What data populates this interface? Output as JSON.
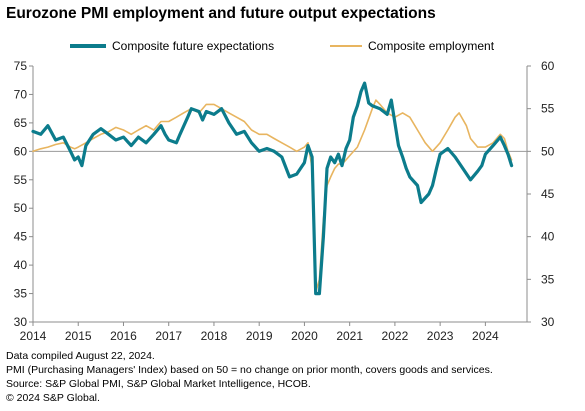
{
  "title": "Eurozone PMI employment and future output expectations",
  "legend": {
    "series1": "Composite future expectations",
    "series2": "Composite employment"
  },
  "colors": {
    "expectations": "#0c7c8c",
    "employment": "#e8b560",
    "axis": "#8c8c8c",
    "refline": "#9a9a9a"
  },
  "footnotes": [
    "Data compiled August 22, 2024.",
    "PMI (Purchasing Managers' Index) based on 50 = no change on prior month, covers goods and services.",
    "Source: S&P Global PMI,  S&P Global Market Intelligence,  HCOB.",
    "© 2024 S&P Global."
  ],
  "chart_data": {
    "type": "line",
    "title": "Eurozone PMI employment and future output expectations",
    "x_ticks": [
      "2014",
      "2015",
      "2016",
      "2017",
      "2018",
      "2019",
      "2020",
      "2021",
      "2022",
      "2023",
      "2024"
    ],
    "xlim": [
      2014.0,
      2024.92
    ],
    "y_left": {
      "min": 30,
      "max": 75,
      "step": 5,
      "ticks": [
        "30",
        "35",
        "40",
        "45",
        "50",
        "55",
        "60",
        "65",
        "70",
        "75"
      ]
    },
    "y_right": {
      "min": 30,
      "max": 60,
      "step": 5,
      "ticks": [
        "30",
        "35",
        "40",
        "45",
        "50",
        "55",
        "60"
      ]
    },
    "reference_line": {
      "axis": "right",
      "value": 50
    },
    "series": [
      {
        "name": "Composite future expectations",
        "axis": "left",
        "points": [
          [
            2014.0,
            63.5
          ],
          [
            2014.17,
            63.0
          ],
          [
            2014.33,
            64.5
          ],
          [
            2014.5,
            62.0
          ],
          [
            2014.67,
            62.5
          ],
          [
            2014.83,
            60.0
          ],
          [
            2014.92,
            58.5
          ],
          [
            2015.0,
            59.0
          ],
          [
            2015.08,
            57.5
          ],
          [
            2015.17,
            61.0
          ],
          [
            2015.33,
            63.0
          ],
          [
            2015.5,
            64.0
          ],
          [
            2015.67,
            63.0
          ],
          [
            2015.83,
            62.0
          ],
          [
            2016.0,
            62.5
          ],
          [
            2016.17,
            61.0
          ],
          [
            2016.33,
            62.5
          ],
          [
            2016.5,
            61.5
          ],
          [
            2016.67,
            63.0
          ],
          [
            2016.83,
            64.5
          ],
          [
            2016.92,
            63.0
          ],
          [
            2017.0,
            62.0
          ],
          [
            2017.17,
            61.5
          ],
          [
            2017.25,
            63.0
          ],
          [
            2017.42,
            66.0
          ],
          [
            2017.5,
            67.5
          ],
          [
            2017.67,
            67.0
          ],
          [
            2017.75,
            65.5
          ],
          [
            2017.83,
            67.0
          ],
          [
            2018.0,
            66.5
          ],
          [
            2018.17,
            67.5
          ],
          [
            2018.33,
            65.0
          ],
          [
            2018.5,
            63.0
          ],
          [
            2018.67,
            63.5
          ],
          [
            2018.83,
            61.5
          ],
          [
            2019.0,
            60.0
          ],
          [
            2019.17,
            60.5
          ],
          [
            2019.33,
            60.0
          ],
          [
            2019.5,
            59.0
          ],
          [
            2019.67,
            55.5
          ],
          [
            2019.83,
            56.0
          ],
          [
            2020.0,
            58.0
          ],
          [
            2020.08,
            61.0
          ],
          [
            2020.17,
            59.0
          ],
          [
            2020.25,
            35.0
          ],
          [
            2020.33,
            35.0
          ],
          [
            2020.42,
            45.0
          ],
          [
            2020.5,
            57.0
          ],
          [
            2020.58,
            59.0
          ],
          [
            2020.67,
            58.0
          ],
          [
            2020.75,
            59.5
          ],
          [
            2020.83,
            57.5
          ],
          [
            2020.92,
            60.5
          ],
          [
            2021.0,
            62.0
          ],
          [
            2021.08,
            66.0
          ],
          [
            2021.17,
            68.0
          ],
          [
            2021.25,
            70.5
          ],
          [
            2021.33,
            72.0
          ],
          [
            2021.42,
            68.5
          ],
          [
            2021.5,
            68.0
          ],
          [
            2021.67,
            67.5
          ],
          [
            2021.83,
            66.5
          ],
          [
            2021.92,
            69.0
          ],
          [
            2022.0,
            65.0
          ],
          [
            2022.08,
            61.0
          ],
          [
            2022.17,
            59.0
          ],
          [
            2022.25,
            57.0
          ],
          [
            2022.33,
            55.5
          ],
          [
            2022.5,
            54.0
          ],
          [
            2022.58,
            51.0
          ],
          [
            2022.75,
            52.5
          ],
          [
            2022.83,
            54.0
          ],
          [
            2022.92,
            57.0
          ],
          [
            2023.0,
            59.5
          ],
          [
            2023.17,
            60.5
          ],
          [
            2023.33,
            59.0
          ],
          [
            2023.5,
            57.0
          ],
          [
            2023.67,
            55.0
          ],
          [
            2023.83,
            56.5
          ],
          [
            2023.92,
            57.5
          ],
          [
            2024.0,
            59.5
          ],
          [
            2024.17,
            61.0
          ],
          [
            2024.33,
            62.5
          ],
          [
            2024.42,
            61.0
          ],
          [
            2024.5,
            59.5
          ],
          [
            2024.58,
            57.5
          ]
        ]
      },
      {
        "name": "Composite employment",
        "axis": "right",
        "points": [
          [
            2014.0,
            50.0
          ],
          [
            2014.17,
            50.3
          ],
          [
            2014.33,
            50.5
          ],
          [
            2014.5,
            50.8
          ],
          [
            2014.67,
            51.0
          ],
          [
            2014.83,
            50.5
          ],
          [
            2014.92,
            50.3
          ],
          [
            2015.0,
            50.5
          ],
          [
            2015.17,
            51.0
          ],
          [
            2015.33,
            51.5
          ],
          [
            2015.5,
            52.0
          ],
          [
            2015.67,
            52.3
          ],
          [
            2015.83,
            52.8
          ],
          [
            2016.0,
            52.5
          ],
          [
            2016.17,
            52.0
          ],
          [
            2016.33,
            52.5
          ],
          [
            2016.5,
            53.0
          ],
          [
            2016.67,
            52.5
          ],
          [
            2016.83,
            53.5
          ],
          [
            2017.0,
            53.5
          ],
          [
            2017.17,
            54.0
          ],
          [
            2017.33,
            54.5
          ],
          [
            2017.5,
            55.0
          ],
          [
            2017.67,
            54.5
          ],
          [
            2017.83,
            55.5
          ],
          [
            2018.0,
            55.5
          ],
          [
            2018.17,
            55.0
          ],
          [
            2018.33,
            54.5
          ],
          [
            2018.5,
            54.0
          ],
          [
            2018.67,
            53.5
          ],
          [
            2018.83,
            52.5
          ],
          [
            2019.0,
            52.0
          ],
          [
            2019.17,
            52.0
          ],
          [
            2019.33,
            51.5
          ],
          [
            2019.5,
            51.0
          ],
          [
            2019.67,
            50.5
          ],
          [
            2019.83,
            50.0
          ],
          [
            2020.0,
            50.5
          ],
          [
            2020.08,
            51.0
          ],
          [
            2020.17,
            48.0
          ],
          [
            2020.25,
            33.5
          ],
          [
            2020.33,
            35.0
          ],
          [
            2020.42,
            42.0
          ],
          [
            2020.5,
            46.0
          ],
          [
            2020.58,
            47.0
          ],
          [
            2020.67,
            48.0
          ],
          [
            2020.75,
            48.5
          ],
          [
            2020.83,
            48.5
          ],
          [
            2020.92,
            49.0
          ],
          [
            2021.0,
            49.5
          ],
          [
            2021.17,
            50.5
          ],
          [
            2021.33,
            52.5
          ],
          [
            2021.5,
            55.0
          ],
          [
            2021.58,
            56.0
          ],
          [
            2021.67,
            55.5
          ],
          [
            2021.83,
            54.5
          ],
          [
            2022.0,
            54.0
          ],
          [
            2022.17,
            54.5
          ],
          [
            2022.33,
            54.0
          ],
          [
            2022.5,
            52.5
          ],
          [
            2022.67,
            51.0
          ],
          [
            2022.83,
            50.0
          ],
          [
            2023.0,
            51.0
          ],
          [
            2023.17,
            52.5
          ],
          [
            2023.33,
            54.0
          ],
          [
            2023.42,
            54.5
          ],
          [
            2023.58,
            53.0
          ],
          [
            2023.67,
            51.5
          ],
          [
            2023.83,
            50.5
          ],
          [
            2024.0,
            50.5
          ],
          [
            2024.17,
            51.0
          ],
          [
            2024.33,
            52.0
          ],
          [
            2024.42,
            51.5
          ],
          [
            2024.5,
            50.0
          ],
          [
            2024.58,
            49.0
          ]
        ]
      }
    ]
  }
}
